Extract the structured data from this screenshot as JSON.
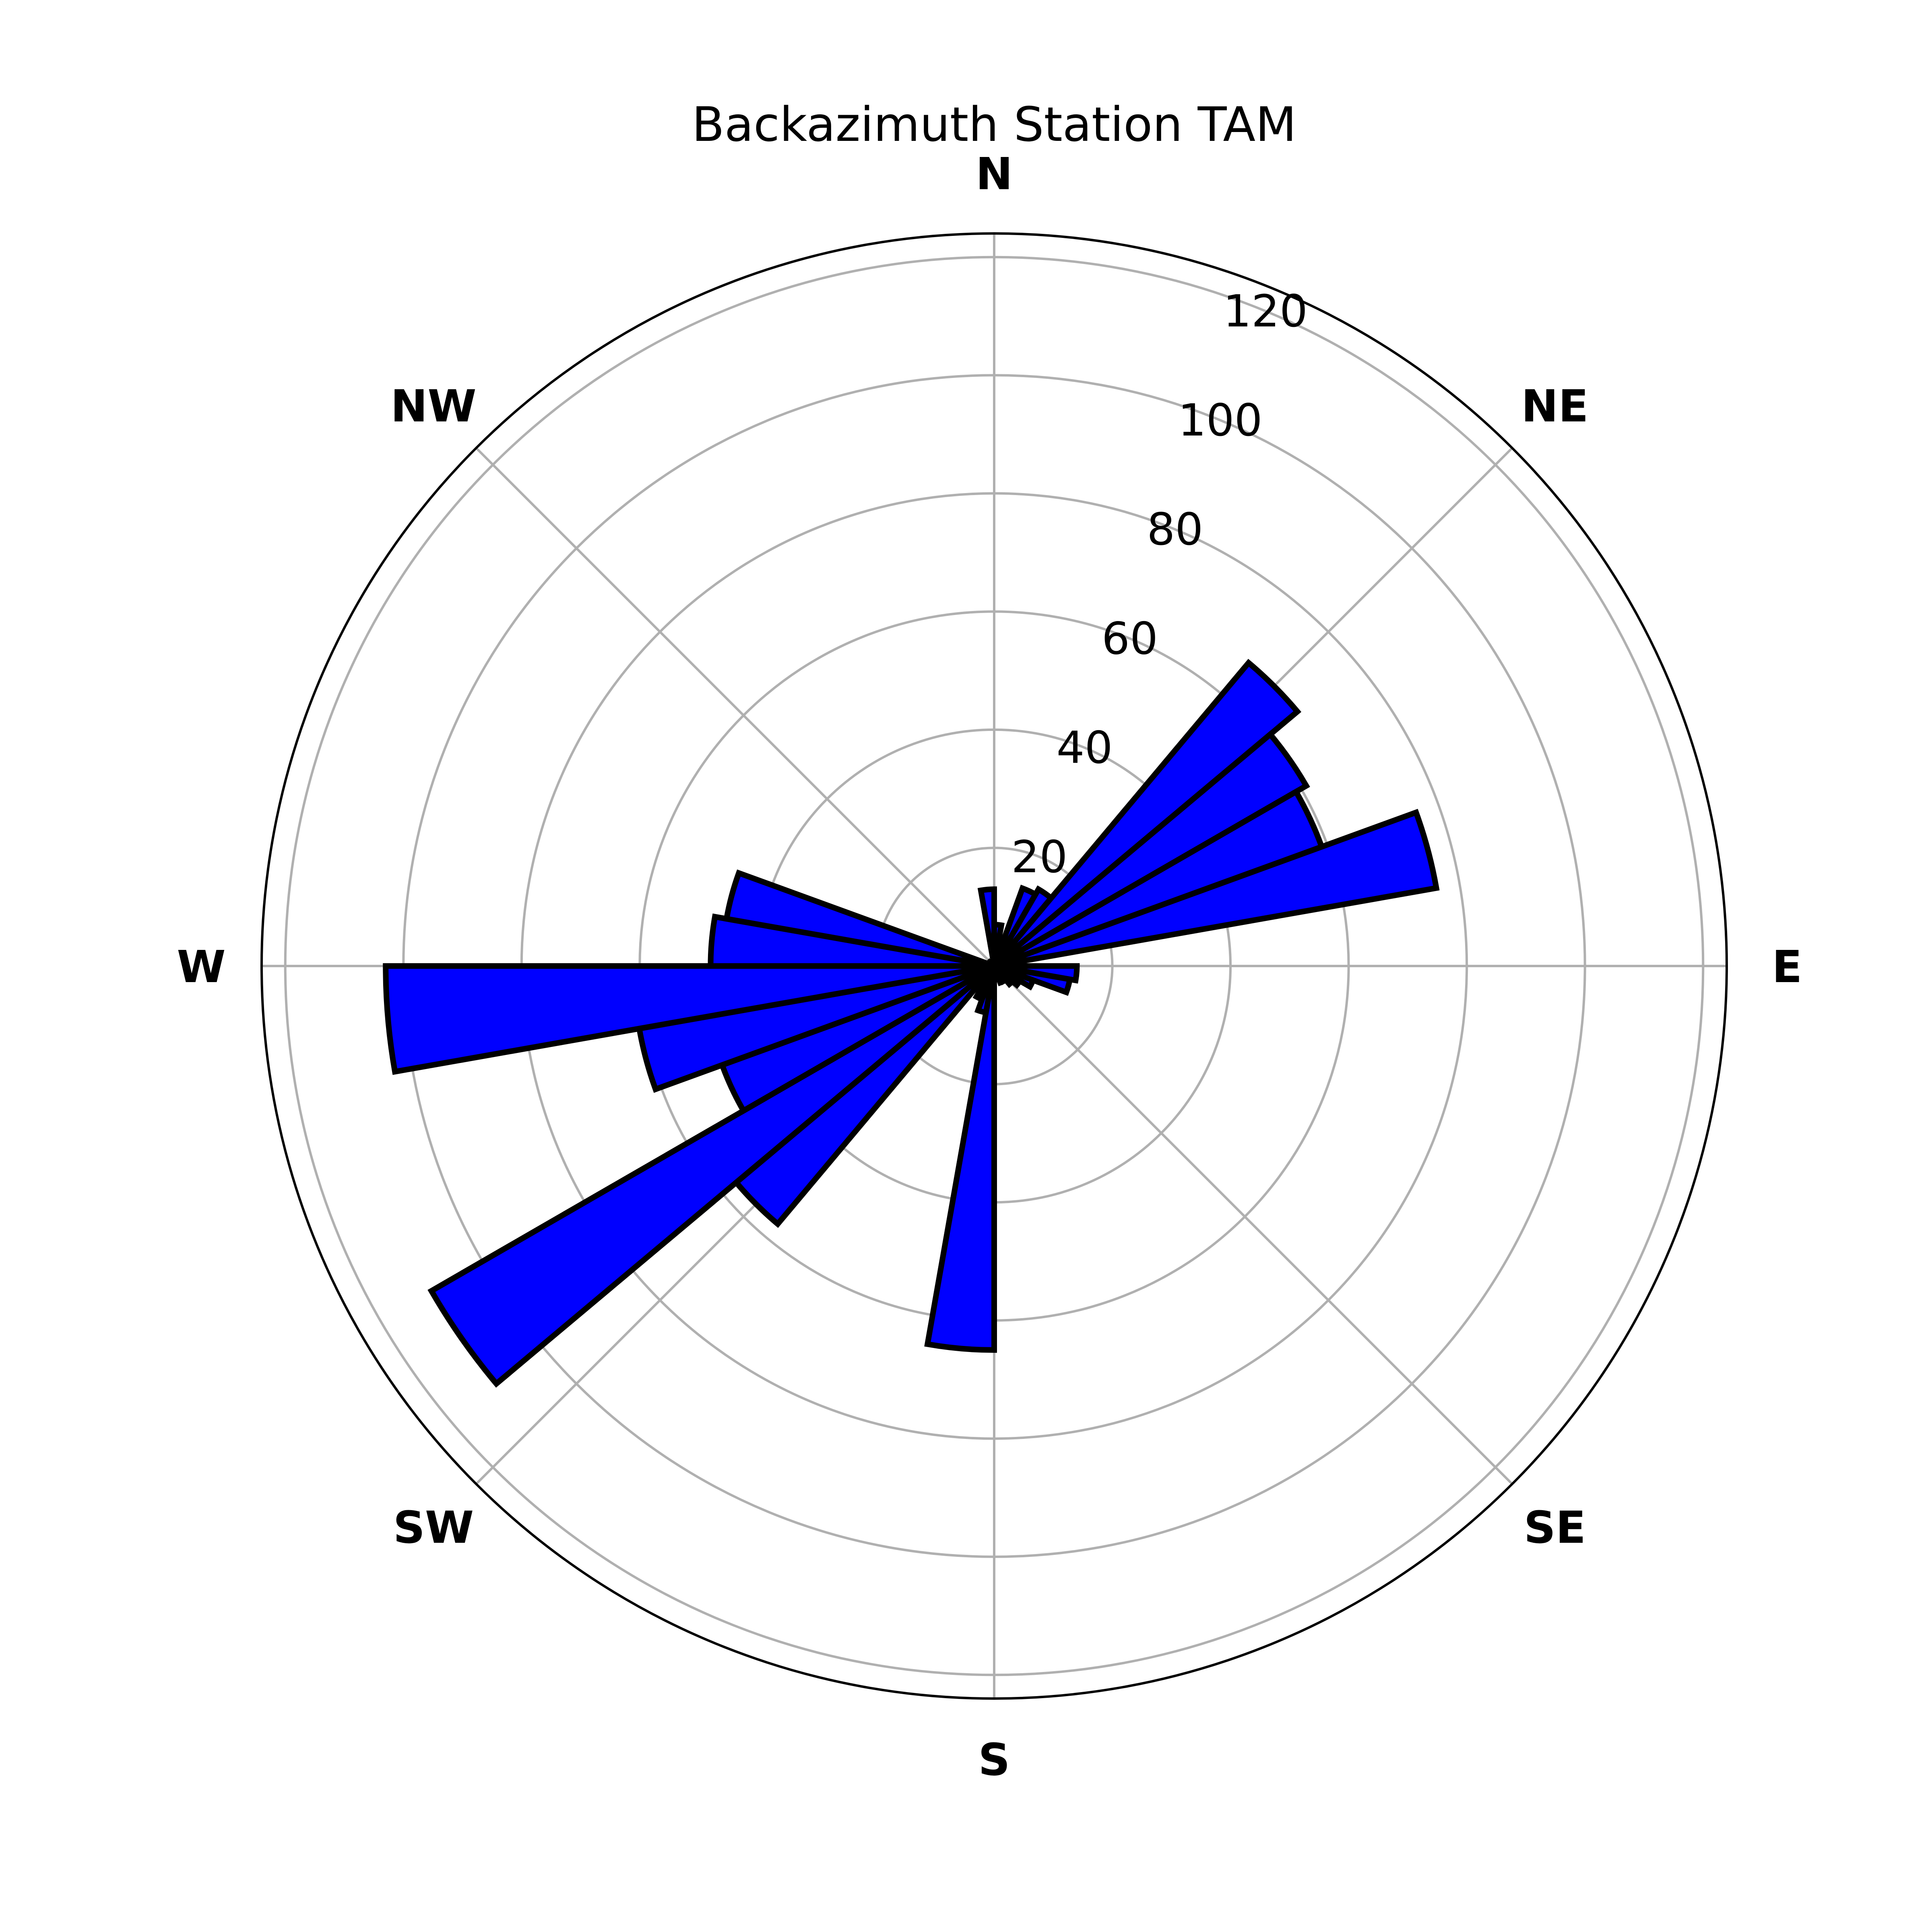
{
  "chart_data": {
    "type": "bar",
    "subtype": "polar-rose",
    "title": "Backazimuth Station TAM",
    "direction_labels": [
      "N",
      "NE",
      "E",
      "SE",
      "S",
      "SW",
      "W",
      "NW"
    ],
    "radial_ticks": [
      "20",
      "40",
      "60",
      "80",
      "100",
      "120"
    ],
    "rlim": [
      0,
      124
    ],
    "bin_width_deg": 10,
    "theta_zero": "N",
    "theta_direction": "clockwise",
    "grid": true,
    "bar_color": "#0000ff",
    "edge_color": "#000000",
    "bins_deg": [
      0,
      10,
      20,
      30,
      40,
      50,
      60,
      70,
      80,
      90,
      100,
      110,
      120,
      130,
      140,
      150,
      160,
      170,
      180,
      190,
      200,
      210,
      220,
      230,
      240,
      250,
      260,
      270,
      280,
      290,
      300,
      310,
      320,
      330,
      340,
      350
    ],
    "values": [
      7,
      3,
      14,
      15,
      67,
      61,
      59,
      76,
      3,
      14,
      13,
      7,
      5,
      4,
      3,
      3,
      0,
      1,
      65,
      8,
      6,
      3,
      57,
      110,
      49,
      61,
      103,
      48,
      46,
      1,
      1,
      0,
      0,
      0,
      0,
      13
    ]
  }
}
